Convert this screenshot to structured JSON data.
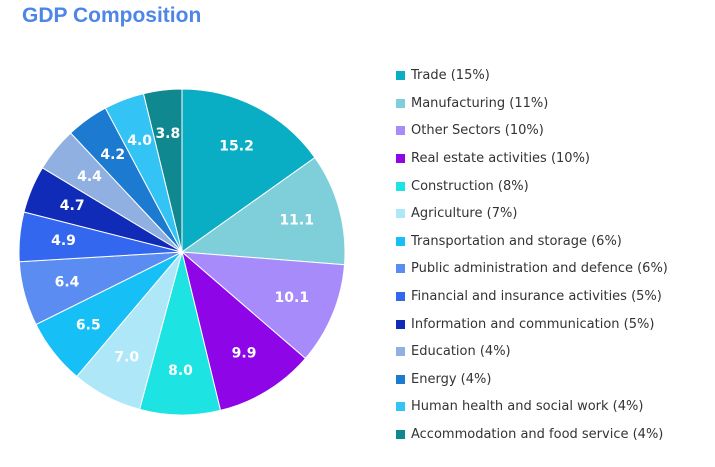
{
  "title": "GDP Composition",
  "chart_data": {
    "type": "pie",
    "title": "GDP Composition",
    "values": [
      15.2,
      11.1,
      10.1,
      9.9,
      8.0,
      7.0,
      6.5,
      6.4,
      4.9,
      4.7,
      4.4,
      4.2,
      4.0,
      3.8
    ],
    "value_labels": [
      "15.2",
      "11.1",
      "10.1",
      "9.9",
      "8.0",
      "7.0",
      "6.5",
      "6.4",
      "4.9",
      "4.7",
      "4.4",
      "4.2",
      "4.0",
      "3.8"
    ],
    "legend_entries": [
      "Trade (15%)",
      "Manufacturing (11%)",
      "Other Sectors (10%)",
      "Real estate activities (10%)",
      "Construction (8%)",
      "Agriculture (7%)",
      "Transportation and storage (6%)",
      "Public administration and defence (6%)",
      "Financial and insurance activities (5%)",
      "Information and communication (5%)",
      "Education (4%)",
      "Energy (4%)",
      "Human health and social work (4%)",
      "Accommodation and food service (4%)"
    ],
    "colors": [
      "#0aaec4",
      "#7fcfdb",
      "#a78bfa",
      "#8e05e8",
      "#1de3e3",
      "#aee7f7",
      "#16bff5",
      "#5a8cf2",
      "#3467f0",
      "#0f2bb8",
      "#8fb0e0",
      "#1d7ad1",
      "#33c4f5",
      "#0f8890"
    ],
    "legend_placement": "right",
    "start_angle": "top, clockwise"
  }
}
